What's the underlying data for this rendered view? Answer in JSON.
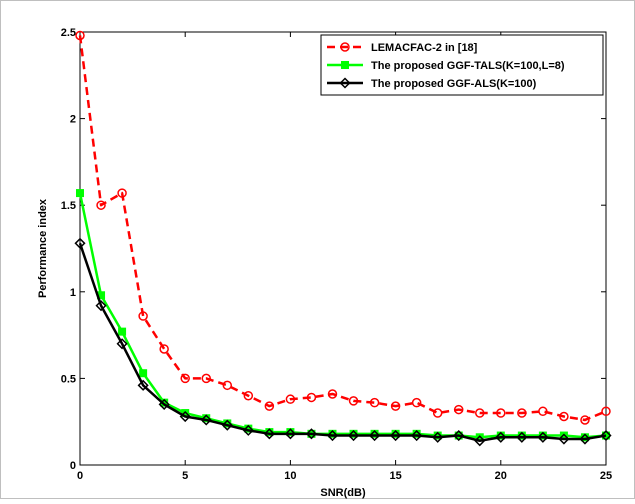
{
  "chart_data": {
    "type": "line",
    "title": "",
    "xlabel": "SNR(dB)",
    "ylabel": "Performance index",
    "xlim": [
      0,
      25
    ],
    "ylim": [
      0,
      2.5
    ],
    "xticks": [
      0,
      5,
      10,
      15,
      20,
      25
    ],
    "yticks": [
      0,
      0.5,
      1,
      1.5,
      2,
      2.5
    ],
    "xtick_labels": [
      "0",
      "5",
      "10",
      "15",
      "20",
      "25"
    ],
    "ytick_labels": [
      "0",
      "0.5",
      "1",
      "1.5",
      "2",
      "2.5"
    ],
    "grid": false,
    "legend_position": "top-right",
    "x": [
      0,
      1,
      2,
      3,
      4,
      5,
      6,
      7,
      8,
      9,
      10,
      11,
      12,
      13,
      14,
      15,
      16,
      17,
      18,
      19,
      20,
      21,
      22,
      23,
      24,
      25
    ],
    "series": [
      {
        "name": "LEMACFAC-2 in [18]",
        "color": "#ff0000",
        "line_style": "dashed",
        "marker": "circle",
        "values": [
          2.48,
          1.5,
          1.57,
          0.86,
          0.67,
          0.5,
          0.5,
          0.46,
          0.4,
          0.34,
          0.38,
          0.39,
          0.41,
          0.37,
          0.36,
          0.34,
          0.36,
          0.3,
          0.32,
          0.3,
          0.3,
          0.3,
          0.31,
          0.28,
          0.26,
          0.31
        ]
      },
      {
        "name": "The proposed GGF-TALS(K=100,L=8)",
        "color": "#00ff00",
        "line_style": "solid",
        "marker": "square",
        "values": [
          1.57,
          0.98,
          0.77,
          0.53,
          0.36,
          0.3,
          0.27,
          0.24,
          0.21,
          0.19,
          0.19,
          0.18,
          0.18,
          0.18,
          0.18,
          0.18,
          0.18,
          0.17,
          0.17,
          0.16,
          0.17,
          0.17,
          0.17,
          0.17,
          0.16,
          0.17
        ]
      },
      {
        "name": "The proposed GGF-ALS(K=100)",
        "color": "#000000",
        "line_style": "solid",
        "marker": "diamond",
        "values": [
          1.28,
          0.92,
          0.7,
          0.46,
          0.35,
          0.28,
          0.26,
          0.23,
          0.2,
          0.18,
          0.18,
          0.18,
          0.17,
          0.17,
          0.17,
          0.17,
          0.17,
          0.16,
          0.17,
          0.14,
          0.16,
          0.16,
          0.16,
          0.15,
          0.15,
          0.17
        ]
      }
    ]
  }
}
